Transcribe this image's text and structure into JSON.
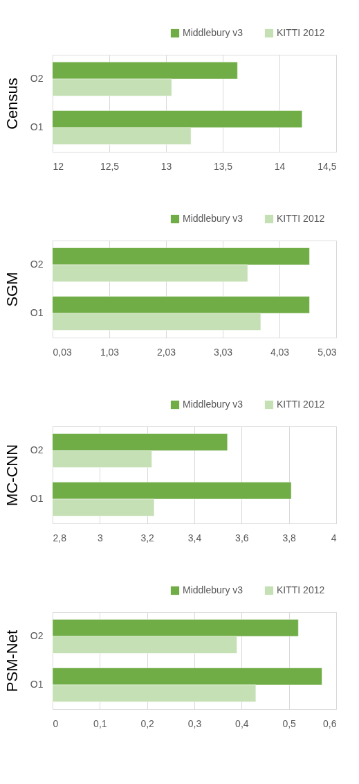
{
  "chart_data": [
    {
      "type": "bar",
      "orientation": "horizontal",
      "ylabel": "Census",
      "categories": [
        "O2",
        "O1"
      ],
      "series": [
        {
          "name": "Middlebury v3",
          "color": "#70ad47",
          "values": [
            13.63,
            14.2
          ]
        },
        {
          "name": "KITTI 2012",
          "color": "#c5e0b4",
          "values": [
            13.05,
            13.22
          ]
        }
      ],
      "xlim": [
        12,
        14.5
      ],
      "xticks": [
        12,
        {
          "value": 12.5,
          "label": "12,5"
        },
        13,
        {
          "value": 13.5,
          "label": "13,5"
        },
        14,
        {
          "value": 14.5,
          "label": "14,5"
        }
      ],
      "grid": "x",
      "legend": "top right"
    },
    {
      "type": "bar",
      "orientation": "horizontal",
      "ylabel": "SGM",
      "categories": [
        "O2",
        "O1"
      ],
      "series": [
        {
          "name": "Middlebury v3",
          "color": "#70ad47",
          "values": [
            4.56,
            4.56
          ]
        },
        {
          "name": "KITTI 2012",
          "color": "#c5e0b4",
          "values": [
            3.47,
            3.7
          ]
        }
      ],
      "xlim": [
        0.03,
        5.03
      ],
      "xticks": [
        {
          "value": 0.03,
          "label": "0,03"
        },
        {
          "value": 1.03,
          "label": "1,03"
        },
        {
          "value": 2.03,
          "label": "2,03"
        },
        {
          "value": 3.03,
          "label": "3,03"
        },
        {
          "value": 4.03,
          "label": "4,03"
        },
        {
          "value": 5.03,
          "label": "5,03"
        }
      ],
      "grid": "x",
      "legend": "top right"
    },
    {
      "type": "bar",
      "orientation": "horizontal",
      "ylabel": "MC-CNN",
      "categories": [
        "O2",
        "O1"
      ],
      "series": [
        {
          "name": "Middlebury v3",
          "color": "#70ad47",
          "values": [
            3.54,
            3.81
          ]
        },
        {
          "name": "KITTI 2012",
          "color": "#c5e0b4",
          "values": [
            3.22,
            3.23
          ]
        }
      ],
      "xlim": [
        2.8,
        4
      ],
      "xticks": [
        {
          "value": 2.8,
          "label": "2,8"
        },
        3,
        {
          "value": 3.2,
          "label": "3,2"
        },
        {
          "value": 3.4,
          "label": "3,4"
        },
        {
          "value": 3.6,
          "label": "3,6"
        },
        {
          "value": 3.8,
          "label": "3,8"
        },
        4
      ],
      "grid": "x",
      "legend": "top right"
    },
    {
      "type": "bar",
      "orientation": "horizontal",
      "ylabel": "PSM-Net",
      "categories": [
        "O2",
        "O1"
      ],
      "series": [
        {
          "name": "Middlebury v3",
          "color": "#70ad47",
          "values": [
            0.52,
            0.57
          ]
        },
        {
          "name": "KITTI 2012",
          "color": "#c5e0b4",
          "values": [
            0.39,
            0.43
          ]
        }
      ],
      "xlim": [
        0,
        0.6
      ],
      "xticks": [
        0,
        {
          "value": 0.1,
          "label": "0,1"
        },
        {
          "value": 0.2,
          "label": "0,2"
        },
        {
          "value": 0.3,
          "label": "0,3"
        },
        {
          "value": 0.4,
          "label": "0,4"
        },
        {
          "value": 0.5,
          "label": "0,5"
        },
        {
          "value": 0.6,
          "label": "0,6"
        }
      ],
      "grid": "x",
      "legend": "top right"
    }
  ]
}
